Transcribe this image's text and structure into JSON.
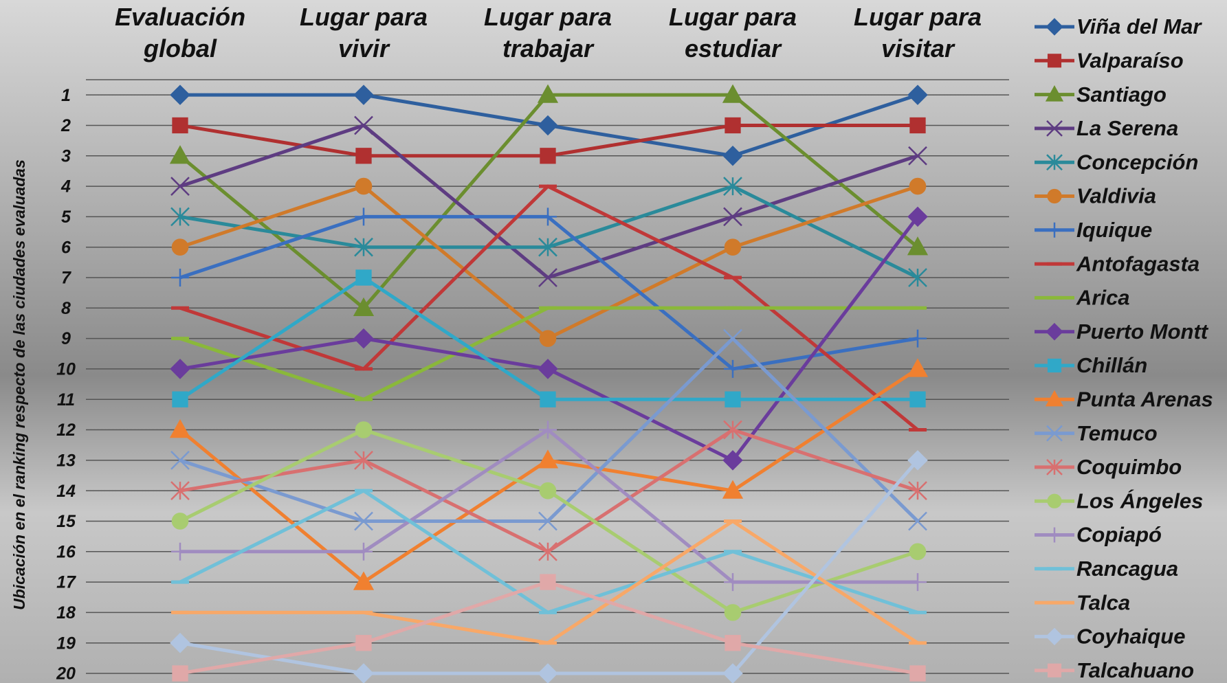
{
  "chart_data": {
    "type": "line",
    "categories": [
      "Evaluación global",
      "Lugar para vivir",
      "Lugar para trabajar",
      "Lugar para estudiar",
      "Lugar para visitar"
    ],
    "y_label": "Ubicación en el ranking respecto de las ciudades evaluadas",
    "ylim": [
      20,
      0.5
    ],
    "yticks": [
      1,
      2,
      3,
      4,
      5,
      6,
      7,
      8,
      9,
      10,
      11,
      12,
      13,
      14,
      15,
      16,
      17,
      18,
      19,
      20
    ],
    "grid": true,
    "legend": "right",
    "series": [
      {
        "name": "Viña del Mar",
        "color": "#2e5f9e",
        "marker": "diamond",
        "values": [
          1,
          1,
          2,
          3,
          1
        ]
      },
      {
        "name": "Valparaíso",
        "color": "#b03030",
        "marker": "square",
        "values": [
          2,
          3,
          3,
          2,
          2
        ]
      },
      {
        "name": "Santiago",
        "color": "#6b8e2f",
        "marker": "triangle",
        "values": [
          3,
          8,
          1,
          1,
          6
        ]
      },
      {
        "name": "La Serena",
        "color": "#5e3c82",
        "marker": "x",
        "values": [
          4,
          2,
          7,
          5,
          3
        ]
      },
      {
        "name": "Concepción",
        "color": "#2a8a9a",
        "marker": "star",
        "values": [
          5,
          6,
          6,
          4,
          7
        ]
      },
      {
        "name": "Valdivia",
        "color": "#d07a2a",
        "marker": "circle",
        "values": [
          6,
          4,
          9,
          6,
          4
        ]
      },
      {
        "name": "Iquique",
        "color": "#3a6fc0",
        "marker": "plus",
        "values": [
          7,
          5,
          5,
          10,
          9
        ]
      },
      {
        "name": "Antofagasta",
        "color": "#c03838",
        "marker": "dash",
        "values": [
          8,
          10,
          4,
          7,
          12
        ]
      },
      {
        "name": "Arica",
        "color": "#8ab83a",
        "marker": "dash",
        "values": [
          9,
          11,
          8,
          8,
          8
        ]
      },
      {
        "name": "Puerto Montt",
        "color": "#6a3c9c",
        "marker": "diamond",
        "values": [
          10,
          9,
          10,
          13,
          5
        ]
      },
      {
        "name": "Chillán",
        "color": "#30a8c8",
        "marker": "square",
        "values": [
          11,
          7,
          11,
          11,
          11
        ]
      },
      {
        "name": "Punta Arenas",
        "color": "#f08030",
        "marker": "triangle",
        "values": [
          12,
          17,
          13,
          14,
          10
        ]
      },
      {
        "name": "Temuco",
        "color": "#7a9ad0",
        "marker": "x",
        "values": [
          13,
          15,
          15,
          9,
          15
        ]
      },
      {
        "name": "Coquimbo",
        "color": "#d87070",
        "marker": "star",
        "values": [
          14,
          13,
          16,
          12,
          14
        ]
      },
      {
        "name": "Los Ángeles",
        "color": "#a8cc70",
        "marker": "circle",
        "values": [
          15,
          12,
          14,
          18,
          16
        ]
      },
      {
        "name": "Copiapó",
        "color": "#a08cc0",
        "marker": "plus",
        "values": [
          16,
          16,
          12,
          17,
          17
        ]
      },
      {
        "name": "Rancagua",
        "color": "#70c0d8",
        "marker": "dash",
        "values": [
          17,
          14,
          18,
          16,
          18
        ]
      },
      {
        "name": "Talca",
        "color": "#f8a868",
        "marker": "dash",
        "values": [
          18,
          18,
          19,
          15,
          19
        ]
      },
      {
        "name": "Coyhaique",
        "color": "#b0c4e0",
        "marker": "diamond",
        "values": [
          19,
          20,
          20,
          20,
          13
        ]
      },
      {
        "name": "Talcahuano",
        "color": "#e0a8a8",
        "marker": "square",
        "values": [
          20,
          19,
          17,
          19,
          20
        ]
      }
    ]
  }
}
